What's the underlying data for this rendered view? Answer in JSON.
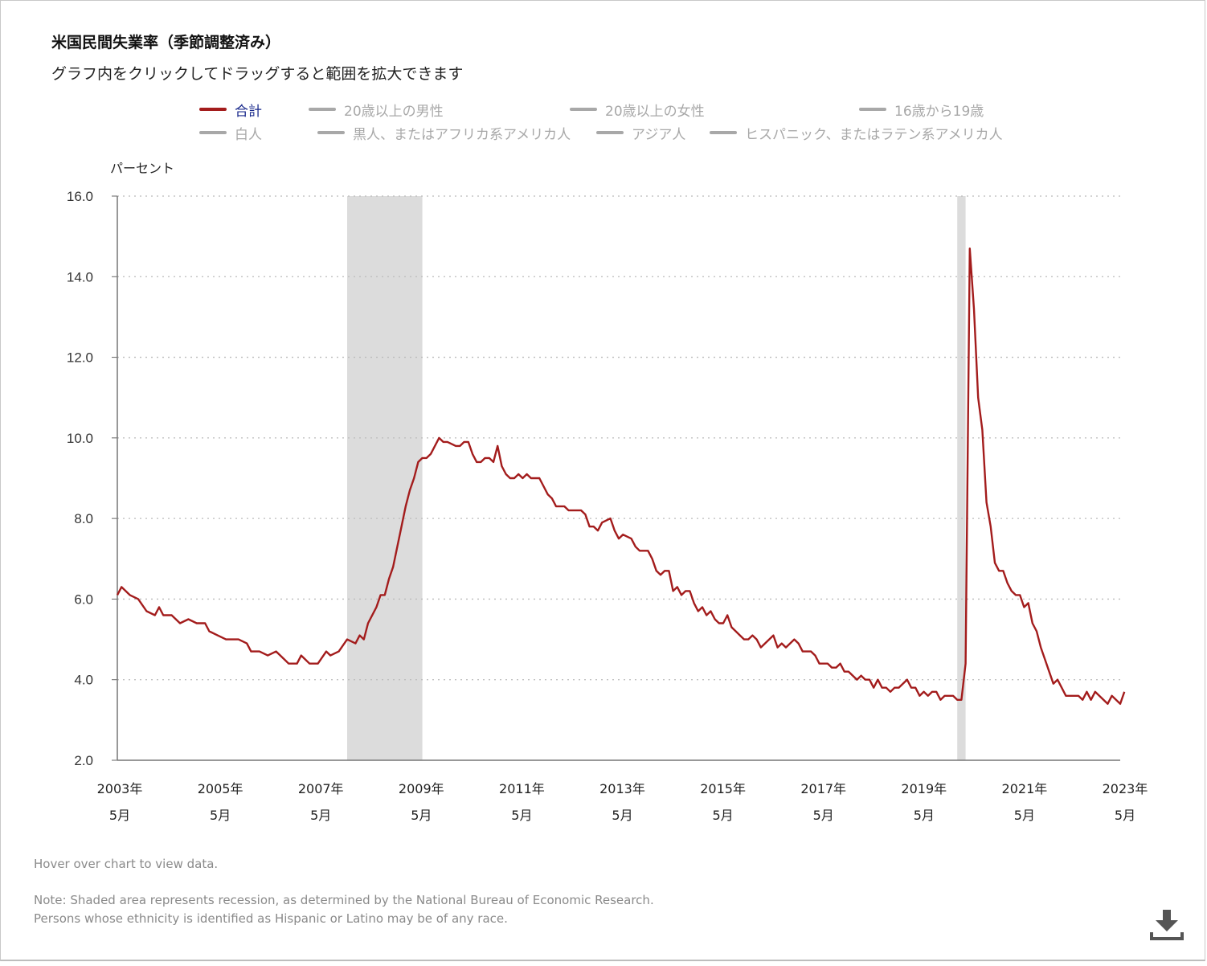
{
  "header": {
    "title": "米国民間失業率（季節調整済み）",
    "subtitle": "グラフ内をクリックしてドラッグすると範囲を拡大できます"
  },
  "legend": [
    {
      "label": "合計",
      "active": true,
      "color": "#a31c1c",
      "text_color": "#1a2a8c"
    },
    {
      "label": "20歳以上の男性",
      "active": false,
      "color": "#a8a8a8",
      "text_color": "#a8a8a8"
    },
    {
      "label": "20歳以上の女性",
      "active": false,
      "color": "#a8a8a8",
      "text_color": "#a8a8a8"
    },
    {
      "label": "16歳から19歳",
      "active": false,
      "color": "#a8a8a8",
      "text_color": "#a8a8a8"
    },
    {
      "label": "白人",
      "active": false,
      "color": "#a8a8a8",
      "text_color": "#a8a8a8"
    },
    {
      "label": "黒人、またはアフリカ系アメリカ人",
      "active": false,
      "color": "#a8a8a8",
      "text_color": "#a8a8a8"
    },
    {
      "label": "アジア人",
      "active": false,
      "color": "#a8a8a8",
      "text_color": "#a8a8a8"
    },
    {
      "label": "ヒスパニック、またはラテン系アメリカ人",
      "active": false,
      "color": "#a8a8a8",
      "text_color": "#a8a8a8"
    }
  ],
  "notes": {
    "hover": "Hover over chart to view data.",
    "note1": "Note: Shaded area represents recession, as determined by the National Bureau of Economic Research.",
    "note2": "Persons whose ethnicity is identified as Hispanic or Latino may be of any race."
  },
  "download": {
    "icon": "download-icon"
  },
  "chart_data": {
    "type": "line",
    "ylabel": "パーセント",
    "ylim": [
      2.0,
      16.0
    ],
    "y_ticks": [
      "16.0",
      "14.0",
      "12.0",
      "10.0",
      "8.0",
      "6.0",
      "4.0",
      "2.0"
    ],
    "x_range": [
      "2003-05",
      "2023-05"
    ],
    "x_ticks": [
      {
        "year": "2003年",
        "month": "5月"
      },
      {
        "year": "2005年",
        "month": "5月"
      },
      {
        "year": "2007年",
        "month": "5月"
      },
      {
        "year": "2009年",
        "month": "5月"
      },
      {
        "year": "2011年",
        "month": "5月"
      },
      {
        "year": "2013年",
        "month": "5月"
      },
      {
        "year": "2015年",
        "month": "5月"
      },
      {
        "year": "2017年",
        "month": "5月"
      },
      {
        "year": "2019年",
        "month": "5月"
      },
      {
        "year": "2021年",
        "month": "5月"
      },
      {
        "year": "2023年",
        "month": "5月"
      }
    ],
    "grid": "horizontal-dotted",
    "recessions": [
      {
        "start": "2007-12",
        "end": "2009-06"
      },
      {
        "start": "2020-02",
        "end": "2020-04"
      }
    ],
    "series": [
      {
        "name": "合計",
        "color": "#a31c1c",
        "points": [
          [
            "2003-05",
            6.1
          ],
          [
            "2003-06",
            6.3
          ],
          [
            "2003-08",
            6.1
          ],
          [
            "2003-10",
            6.0
          ],
          [
            "2003-12",
            5.7
          ],
          [
            "2004-02",
            5.6
          ],
          [
            "2004-03",
            5.8
          ],
          [
            "2004-04",
            5.6
          ],
          [
            "2004-06",
            5.6
          ],
          [
            "2004-08",
            5.4
          ],
          [
            "2004-10",
            5.5
          ],
          [
            "2004-12",
            5.4
          ],
          [
            "2005-02",
            5.4
          ],
          [
            "2005-03",
            5.2
          ],
          [
            "2005-05",
            5.1
          ],
          [
            "2005-07",
            5.0
          ],
          [
            "2005-09",
            5.0
          ],
          [
            "2005-10",
            5.0
          ],
          [
            "2005-12",
            4.9
          ],
          [
            "2006-01",
            4.7
          ],
          [
            "2006-03",
            4.7
          ],
          [
            "2006-05",
            4.6
          ],
          [
            "2006-07",
            4.7
          ],
          [
            "2006-09",
            4.5
          ],
          [
            "2006-10",
            4.4
          ],
          [
            "2006-12",
            4.4
          ],
          [
            "2007-01",
            4.6
          ],
          [
            "2007-03",
            4.4
          ],
          [
            "2007-05",
            4.4
          ],
          [
            "2007-07",
            4.7
          ],
          [
            "2007-08",
            4.6
          ],
          [
            "2007-10",
            4.7
          ],
          [
            "2007-12",
            5.0
          ],
          [
            "2008-02",
            4.9
          ],
          [
            "2008-03",
            5.1
          ],
          [
            "2008-04",
            5.0
          ],
          [
            "2008-05",
            5.4
          ],
          [
            "2008-07",
            5.8
          ],
          [
            "2008-08",
            6.1
          ],
          [
            "2008-09",
            6.1
          ],
          [
            "2008-10",
            6.5
          ],
          [
            "2008-11",
            6.8
          ],
          [
            "2008-12",
            7.3
          ],
          [
            "2009-01",
            7.8
          ],
          [
            "2009-02",
            8.3
          ],
          [
            "2009-03",
            8.7
          ],
          [
            "2009-04",
            9.0
          ],
          [
            "2009-05",
            9.4
          ],
          [
            "2009-06",
            9.5
          ],
          [
            "2009-07",
            9.5
          ],
          [
            "2009-08",
            9.6
          ],
          [
            "2009-09",
            9.8
          ],
          [
            "2009-10",
            10.0
          ],
          [
            "2009-11",
            9.9
          ],
          [
            "2009-12",
            9.9
          ],
          [
            "2010-02",
            9.8
          ],
          [
            "2010-03",
            9.8
          ],
          [
            "2010-04",
            9.9
          ],
          [
            "2010-05",
            9.9
          ],
          [
            "2010-06",
            9.6
          ],
          [
            "2010-07",
            9.4
          ],
          [
            "2010-08",
            9.4
          ],
          [
            "2010-09",
            9.5
          ],
          [
            "2010-10",
            9.5
          ],
          [
            "2010-11",
            9.4
          ],
          [
            "2010-12",
            9.8
          ],
          [
            "2011-01",
            9.3
          ],
          [
            "2011-02",
            9.1
          ],
          [
            "2011-03",
            9.0
          ],
          [
            "2011-04",
            9.0
          ],
          [
            "2011-05",
            9.1
          ],
          [
            "2011-06",
            9.0
          ],
          [
            "2011-07",
            9.1
          ],
          [
            "2011-08",
            9.0
          ],
          [
            "2011-10",
            9.0
          ],
          [
            "2011-11",
            8.8
          ],
          [
            "2011-12",
            8.6
          ],
          [
            "2012-01",
            8.5
          ],
          [
            "2012-02",
            8.3
          ],
          [
            "2012-04",
            8.3
          ],
          [
            "2012-05",
            8.2
          ],
          [
            "2012-07",
            8.2
          ],
          [
            "2012-08",
            8.2
          ],
          [
            "2012-09",
            8.1
          ],
          [
            "2012-10",
            7.8
          ],
          [
            "2012-11",
            7.8
          ],
          [
            "2012-12",
            7.7
          ],
          [
            "2013-01",
            7.9
          ],
          [
            "2013-03",
            8.0
          ],
          [
            "2013-04",
            7.7
          ],
          [
            "2013-05",
            7.5
          ],
          [
            "2013-06",
            7.6
          ],
          [
            "2013-08",
            7.5
          ],
          [
            "2013-09",
            7.3
          ],
          [
            "2013-10",
            7.2
          ],
          [
            "2013-12",
            7.2
          ],
          [
            "2014-01",
            7.0
          ],
          [
            "2014-02",
            6.7
          ],
          [
            "2014-03",
            6.6
          ],
          [
            "2014-04",
            6.7
          ],
          [
            "2014-05",
            6.7
          ],
          [
            "2014-06",
            6.2
          ],
          [
            "2014-07",
            6.3
          ],
          [
            "2014-08",
            6.1
          ],
          [
            "2014-09",
            6.2
          ],
          [
            "2014-10",
            6.2
          ],
          [
            "2014-11",
            5.9
          ],
          [
            "2014-12",
            5.7
          ],
          [
            "2015-01",
            5.8
          ],
          [
            "2015-02",
            5.6
          ],
          [
            "2015-03",
            5.7
          ],
          [
            "2015-04",
            5.5
          ],
          [
            "2015-05",
            5.4
          ],
          [
            "2015-06",
            5.4
          ],
          [
            "2015-07",
            5.6
          ],
          [
            "2015-08",
            5.3
          ],
          [
            "2015-09",
            5.2
          ],
          [
            "2015-10",
            5.1
          ],
          [
            "2015-11",
            5.0
          ],
          [
            "2015-12",
            5.0
          ],
          [
            "2016-01",
            5.1
          ],
          [
            "2016-02",
            5.0
          ],
          [
            "2016-03",
            4.8
          ],
          [
            "2016-04",
            4.9
          ],
          [
            "2016-05",
            5.0
          ],
          [
            "2016-06",
            5.1
          ],
          [
            "2016-07",
            4.8
          ],
          [
            "2016-08",
            4.9
          ],
          [
            "2016-09",
            4.8
          ],
          [
            "2016-10",
            4.9
          ],
          [
            "2016-11",
            5.0
          ],
          [
            "2016-12",
            4.9
          ],
          [
            "2017-01",
            4.7
          ],
          [
            "2017-02",
            4.7
          ],
          [
            "2017-03",
            4.7
          ],
          [
            "2017-04",
            4.6
          ],
          [
            "2017-05",
            4.4
          ],
          [
            "2017-06",
            4.4
          ],
          [
            "2017-07",
            4.4
          ],
          [
            "2017-08",
            4.3
          ],
          [
            "2017-09",
            4.3
          ],
          [
            "2017-10",
            4.4
          ],
          [
            "2017-11",
            4.2
          ],
          [
            "2017-12",
            4.2
          ],
          [
            "2018-01",
            4.1
          ],
          [
            "2018-02",
            4.0
          ],
          [
            "2018-03",
            4.1
          ],
          [
            "2018-04",
            4.0
          ],
          [
            "2018-05",
            4.0
          ],
          [
            "2018-06",
            3.8
          ],
          [
            "2018-07",
            4.0
          ],
          [
            "2018-08",
            3.8
          ],
          [
            "2018-09",
            3.8
          ],
          [
            "2018-10",
            3.7
          ],
          [
            "2018-11",
            3.8
          ],
          [
            "2018-12",
            3.8
          ],
          [
            "2019-01",
            3.9
          ],
          [
            "2019-02",
            4.0
          ],
          [
            "2019-03",
            3.8
          ],
          [
            "2019-04",
            3.8
          ],
          [
            "2019-05",
            3.6
          ],
          [
            "2019-06",
            3.7
          ],
          [
            "2019-07",
            3.6
          ],
          [
            "2019-08",
            3.7
          ],
          [
            "2019-09",
            3.7
          ],
          [
            "2019-10",
            3.5
          ],
          [
            "2019-11",
            3.6
          ],
          [
            "2019-12",
            3.6
          ],
          [
            "2020-01",
            3.6
          ],
          [
            "2020-02",
            3.5
          ],
          [
            "2020-03",
            3.5
          ],
          [
            "2020-04",
            4.4
          ],
          [
            "2020-05",
            14.7
          ],
          [
            "2020-06",
            13.2
          ],
          [
            "2020-07",
            11.0
          ],
          [
            "2020-08",
            10.2
          ],
          [
            "2020-09",
            8.4
          ],
          [
            "2020-10",
            7.8
          ],
          [
            "2020-11",
            6.9
          ],
          [
            "2020-12",
            6.7
          ],
          [
            "2021-01",
            6.7
          ],
          [
            "2021-02",
            6.4
          ],
          [
            "2021-03",
            6.2
          ],
          [
            "2021-04",
            6.1
          ],
          [
            "2021-05",
            6.1
          ],
          [
            "2021-06",
            5.8
          ],
          [
            "2021-07",
            5.9
          ],
          [
            "2021-08",
            5.4
          ],
          [
            "2021-09",
            5.2
          ],
          [
            "2021-10",
            4.8
          ],
          [
            "2021-11",
            4.5
          ],
          [
            "2021-12",
            4.2
          ],
          [
            "2022-01",
            3.9
          ],
          [
            "2022-02",
            4.0
          ],
          [
            "2022-03",
            3.8
          ],
          [
            "2022-04",
            3.6
          ],
          [
            "2022-05",
            3.6
          ],
          [
            "2022-06",
            3.6
          ],
          [
            "2022-07",
            3.6
          ],
          [
            "2022-08",
            3.5
          ],
          [
            "2022-09",
            3.7
          ],
          [
            "2022-10",
            3.5
          ],
          [
            "2022-11",
            3.7
          ],
          [
            "2022-12",
            3.6
          ],
          [
            "2023-01",
            3.5
          ],
          [
            "2023-02",
            3.4
          ],
          [
            "2023-03",
            3.6
          ],
          [
            "2023-04",
            3.5
          ],
          [
            "2023-05",
            3.4
          ],
          [
            "2023-06",
            3.7
          ]
        ]
      }
    ]
  }
}
